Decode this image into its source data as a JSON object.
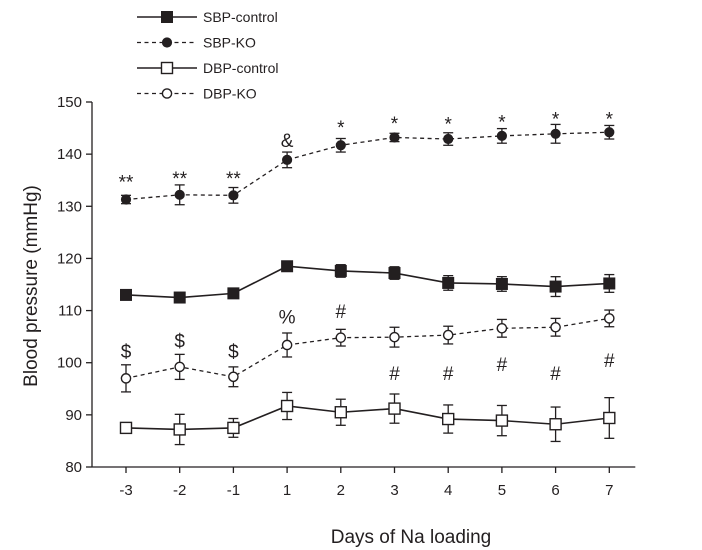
{
  "chart_data": {
    "type": "line",
    "title": "",
    "xlabel": "Days of Na loading",
    "ylabel": "Blood pressure (mmHg)",
    "categories": [
      "-3",
      "-2",
      "-1",
      "1",
      "2",
      "3",
      "4",
      "5",
      "6",
      "7"
    ],
    "ylim": [
      80,
      150
    ],
    "yticks": [
      80,
      90,
      100,
      110,
      120,
      130,
      140,
      150
    ],
    "grid": false,
    "legend_position": "top-left",
    "series": [
      {
        "name": "SBP-control",
        "line_style": "solid",
        "marker": "filled-square",
        "values": [
          113.0,
          112.5,
          113.3,
          118.5,
          117.6,
          117.2,
          115.3,
          115.1,
          114.6,
          115.2
        ],
        "errors": [
          0.6,
          0.7,
          0.7,
          0.8,
          1.2,
          1.2,
          1.4,
          1.4,
          1.9,
          1.7
        ]
      },
      {
        "name": "SBP-KO",
        "line_style": "dashed",
        "marker": "filled-circle",
        "values": [
          131.3,
          132.2,
          132.1,
          138.9,
          141.7,
          143.2,
          142.9,
          143.5,
          143.9,
          144.2
        ],
        "errors": [
          0.8,
          1.9,
          1.5,
          1.5,
          1.3,
          0.8,
          1.2,
          1.4,
          1.8,
          1.3
        ]
      },
      {
        "name": "DBP-control",
        "line_style": "solid",
        "marker": "open-square",
        "values": [
          87.5,
          87.2,
          87.5,
          91.7,
          90.5,
          91.2,
          89.2,
          88.9,
          88.2,
          89.4
        ],
        "errors": [
          0.9,
          2.9,
          1.8,
          2.6,
          2.5,
          2.8,
          2.7,
          2.9,
          3.3,
          3.9
        ]
      },
      {
        "name": "DBP-KO",
        "line_style": "dashed",
        "marker": "open-circle",
        "values": [
          97.0,
          99.2,
          97.3,
          103.4,
          104.8,
          104.9,
          105.3,
          106.6,
          106.8,
          108.5
        ],
        "errors": [
          2.6,
          2.4,
          1.9,
          2.3,
          1.6,
          1.9,
          1.7,
          1.7,
          1.7,
          1.6
        ]
      }
    ],
    "annotations": [
      {
        "text": "**",
        "x": "-3",
        "y": 134.8
      },
      {
        "text": "**",
        "x": "-2",
        "y": 135.4
      },
      {
        "text": "**",
        "x": "-1",
        "y": 135.4
      },
      {
        "text": "&",
        "x": "1",
        "y": 142.7
      },
      {
        "text": "*",
        "x": "2",
        "y": 145.2
      },
      {
        "text": "*",
        "x": "3",
        "y": 146.0
      },
      {
        "text": "*",
        "x": "4",
        "y": 145.9
      },
      {
        "text": "*",
        "x": "5",
        "y": 146.3
      },
      {
        "text": "*",
        "x": "6",
        "y": 146.8
      },
      {
        "text": "*",
        "x": "7",
        "y": 146.8
      },
      {
        "text": "$",
        "x": "-3",
        "y": 102.2
      },
      {
        "text": "$",
        "x": "-2",
        "y": 104.3
      },
      {
        "text": "$",
        "x": "-1",
        "y": 102.2
      },
      {
        "text": "%",
        "x": "1",
        "y": 108.9
      },
      {
        "text": "#",
        "x": "2",
        "y": 109.9
      },
      {
        "text": "#",
        "x": "3",
        "y": 98.0
      },
      {
        "text": "#",
        "x": "4",
        "y": 98.0
      },
      {
        "text": "#",
        "x": "5",
        "y": 99.8
      },
      {
        "text": "#",
        "x": "6",
        "y": 98.0
      },
      {
        "text": "#",
        "x": "7",
        "y": 100.5
      }
    ],
    "colors": {
      "ink": "#231f20",
      "background": "#ffffff"
    }
  }
}
